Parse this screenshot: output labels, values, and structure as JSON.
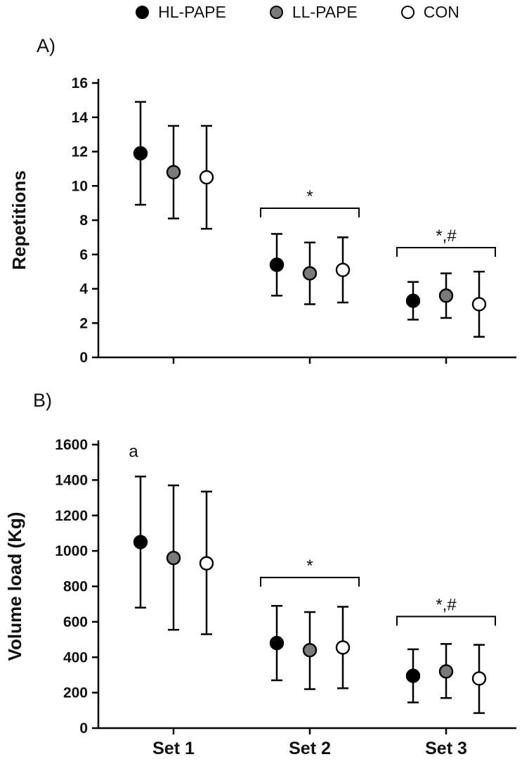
{
  "figure": {
    "panel_a_label": "A)",
    "panel_b_label": "B)"
  },
  "legend": {
    "items": [
      {
        "label": "HL-PAPE",
        "color": "#000000"
      },
      {
        "label": "LL-PAPE",
        "color": "#7a7a7a"
      },
      {
        "label": "CON",
        "color": "#ffffff"
      }
    ]
  },
  "chart_data": [
    {
      "type": "scatter",
      "panel": "A",
      "title": "",
      "ylabel": "Repetitions",
      "xlabel": "",
      "ylim": [
        0,
        16
      ],
      "ytick_step": 2,
      "grid": false,
      "legend_position": "top",
      "categories": [
        "Set 1",
        "Set 2",
        "Set 3"
      ],
      "x_labels_visible": false,
      "series": [
        {
          "name": "HL-PAPE",
          "color": "#000000",
          "means": [
            11.9,
            5.4,
            3.3
          ],
          "lower": [
            8.9,
            3.6,
            2.2
          ],
          "upper": [
            14.9,
            7.2,
            4.4
          ]
        },
        {
          "name": "LL-PAPE",
          "color": "#7a7a7a",
          "means": [
            10.8,
            4.9,
            3.6
          ],
          "lower": [
            8.1,
            3.1,
            2.3
          ],
          "upper": [
            13.5,
            6.7,
            4.9
          ]
        },
        {
          "name": "CON",
          "color": "#ffffff",
          "means": [
            10.5,
            5.1,
            3.1
          ],
          "lower": [
            7.5,
            3.2,
            1.2
          ],
          "upper": [
            13.5,
            7.0,
            5.0
          ]
        }
      ],
      "annotations": [
        {
          "kind": "bracket",
          "set_index": 1,
          "label": "*",
          "y": 8.7
        },
        {
          "kind": "bracket",
          "set_index": 2,
          "label": "*,#",
          "y": 6.4
        }
      ]
    },
    {
      "type": "scatter",
      "panel": "B",
      "title": "",
      "ylabel": "Volume load (Kg)",
      "xlabel": "",
      "ylim": [
        0,
        1600
      ],
      "ytick_step": 200,
      "grid": false,
      "legend_position": "top",
      "categories": [
        "Set 1",
        "Set 2",
        "Set 3"
      ],
      "x_labels_visible": true,
      "series": [
        {
          "name": "HL-PAPE",
          "color": "#000000",
          "means": [
            1050,
            480,
            295
          ],
          "lower": [
            680,
            270,
            145
          ],
          "upper": [
            1420,
            690,
            445
          ]
        },
        {
          "name": "LL-PAPE",
          "color": "#7a7a7a",
          "means": [
            960,
            440,
            320
          ],
          "lower": [
            555,
            220,
            170
          ],
          "upper": [
            1370,
            655,
            475
          ]
        },
        {
          "name": "CON",
          "color": "#ffffff",
          "means": [
            930,
            455,
            280
          ],
          "lower": [
            530,
            225,
            85
          ],
          "upper": [
            1335,
            685,
            470
          ]
        }
      ],
      "annotations": [
        {
          "kind": "text",
          "set_index": 0,
          "series_index": 0,
          "label": "a",
          "y": 1530
        },
        {
          "kind": "bracket",
          "set_index": 1,
          "label": "*",
          "y": 850
        },
        {
          "kind": "bracket",
          "set_index": 2,
          "label": "*,#",
          "y": 630
        }
      ]
    }
  ]
}
